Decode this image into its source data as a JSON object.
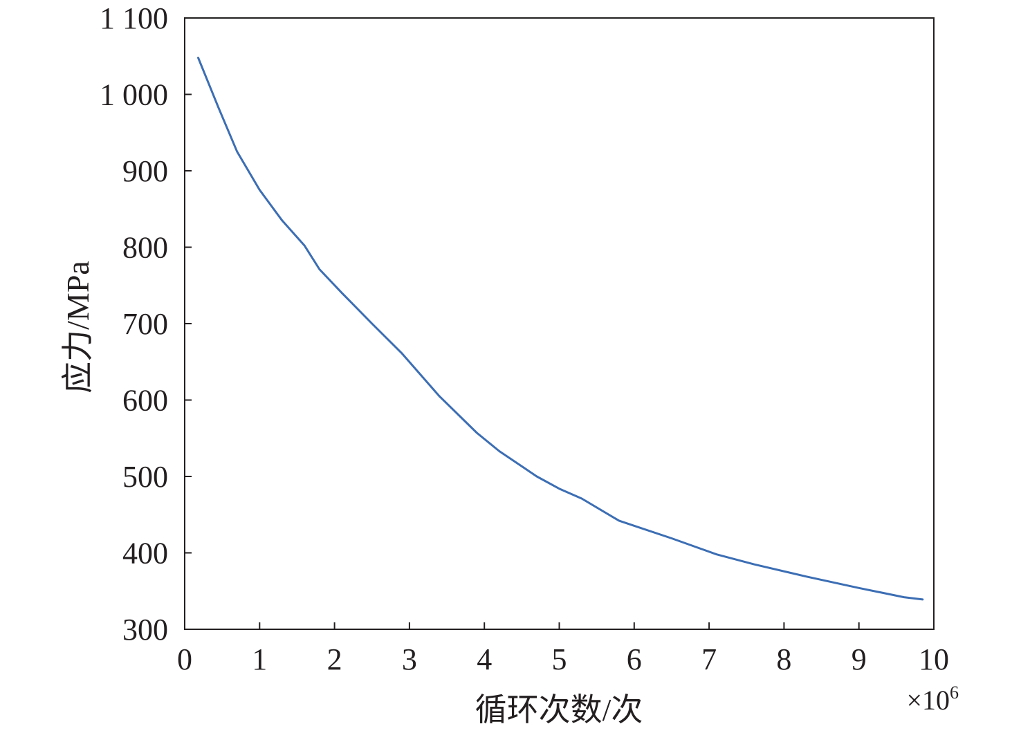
{
  "chart_data": {
    "type": "line",
    "xlabel": "循环次数/次",
    "ylabel": "应力/MPa",
    "x_multiplier": {
      "prefix": "×10",
      "exponent": "6"
    },
    "xlim": [
      0,
      10
    ],
    "ylim": [
      300,
      1100
    ],
    "x_ticks": [
      0,
      1,
      2,
      3,
      4,
      5,
      6,
      7,
      8,
      9,
      10
    ],
    "x_tick_labels": [
      "0",
      "1",
      "2",
      "3",
      "4",
      "5",
      "6",
      "7",
      "8",
      "9",
      "10"
    ],
    "y_ticks": [
      300,
      400,
      500,
      600,
      700,
      800,
      900,
      1000,
      1100
    ],
    "y_tick_labels": [
      "300",
      "400",
      "500",
      "600",
      "700",
      "800",
      "900",
      "1 000",
      "1 100"
    ],
    "grid": false,
    "series": [
      {
        "color": "#3c6eb4",
        "points": [
          [
            0.18,
            1048
          ],
          [
            0.45,
            983
          ],
          [
            0.7,
            925
          ],
          [
            1.0,
            875
          ],
          [
            1.3,
            835
          ],
          [
            1.6,
            802
          ],
          [
            1.8,
            771
          ],
          [
            2.1,
            740
          ],
          [
            2.5,
            700
          ],
          [
            2.9,
            661
          ],
          [
            3.4,
            605
          ],
          [
            3.9,
            557
          ],
          [
            4.2,
            533
          ],
          [
            4.7,
            500
          ],
          [
            5.0,
            484
          ],
          [
            5.3,
            471
          ],
          [
            5.8,
            442
          ],
          [
            6.5,
            419
          ],
          [
            7.1,
            398
          ],
          [
            7.6,
            385
          ],
          [
            8.3,
            369
          ],
          [
            9.0,
            354
          ],
          [
            9.6,
            342
          ],
          [
            9.85,
            339
          ]
        ]
      }
    ]
  }
}
